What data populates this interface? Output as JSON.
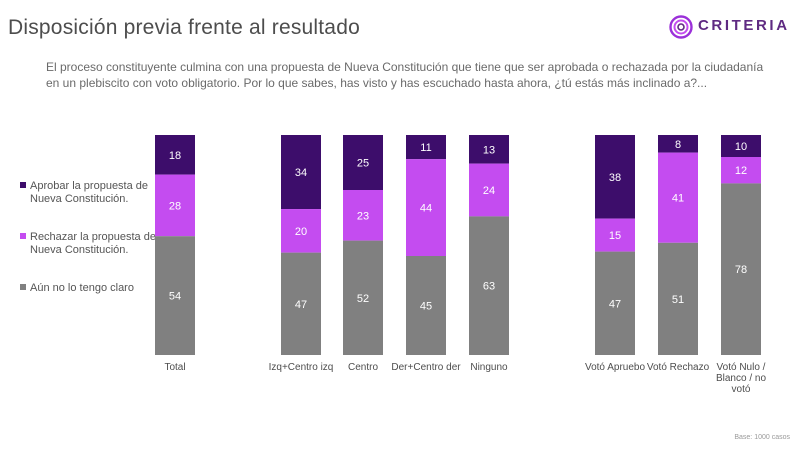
{
  "title": "Disposición previa frente al resultado",
  "brand": "CRITERIA",
  "question": "El proceso constituyente culmina con una propuesta de Nueva Constitución que tiene que ser aprobada o rechazada por la ciudadanía en un plebiscito con voto obligatorio. Por lo que sabes, has visto y has escuchado hasta ahora, ¿tú estás más inclinado a?...",
  "footnote": "Base: 1000 casos",
  "legend": [
    {
      "label": "Aprobar la propuesta de Nueva Constitución.",
      "color": "#3d0d6b"
    },
    {
      "label": "Rechazar la propuesta de Nueva Constitución.",
      "color": "#c44cf0"
    },
    {
      "label": "Aún no lo tengo claro",
      "color": "#808080"
    }
  ],
  "chart_data": {
    "type": "bar",
    "stacked": true,
    "categories": [
      "Total",
      "Izq+Centro izq",
      "Centro",
      "Der+Centro der",
      "Ninguno",
      "Votó Apruebo",
      "Votó Rechazo",
      "Votó Nulo / Blanco / no votó"
    ],
    "series": [
      {
        "name": "Aprobar la propuesta de Nueva Constitución.",
        "color": "#3d0d6b",
        "values": [
          18,
          34,
          25,
          11,
          13,
          38,
          8,
          10
        ]
      },
      {
        "name": "Rechazar la propuesta de Nueva Constitución.",
        "color": "#c44cf0",
        "values": [
          28,
          20,
          23,
          44,
          24,
          15,
          41,
          12
        ]
      },
      {
        "name": "Aún no lo tengo claro",
        "color": "#808080",
        "values": [
          54,
          47,
          52,
          45,
          63,
          47,
          51,
          78
        ]
      }
    ]
  }
}
